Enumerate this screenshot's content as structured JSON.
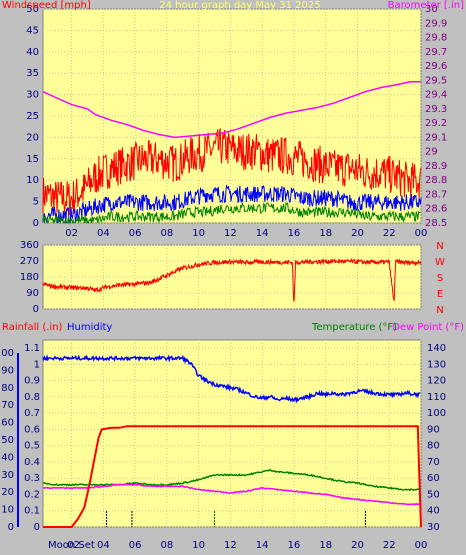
{
  "page": {
    "background": "#c0c0c0",
    "plot_bg": "#ffff99"
  },
  "chart_data": [
    {
      "type": "line",
      "title": "24 hour graph day   May 31 2025",
      "ylabel_left": "Windspeed [mph]",
      "ylabel_right": "Barometer [.in]",
      "xticks": [
        "02",
        "04",
        "06",
        "08",
        "10",
        "12",
        "14",
        "16",
        "18",
        "20",
        "22",
        "00"
      ],
      "yticks_left": [
        "0",
        "5",
        "10",
        "15",
        "20",
        "25",
        "30",
        "35",
        "40",
        "45",
        "50"
      ],
      "yticks_right": [
        "28.5",
        "28.6",
        "28.7",
        "28.8",
        "28.9",
        "29",
        "29.1",
        "29.2",
        "29.3",
        "29.4",
        "29.5",
        "29.6",
        "29.7",
        "29.8",
        "29.9",
        "30"
      ],
      "ylim_left": [
        0,
        50
      ],
      "ylim_right": [
        28.5,
        30
      ],
      "xlim": [
        0.2,
        24.0
      ],
      "colors": {
        "gust": "#ff0000",
        "average": "#0000ff",
        "minimum": "#008000",
        "barometer": "#ff00ff",
        "ylabel_left": "#ff0000",
        "ylabel_right": "#ff00ff",
        "title": "#ffff66",
        "tick": "#000080"
      },
      "series": [
        {
          "key": "gust",
          "points": [
            [
              0.2,
              5
            ],
            [
              1,
              4
            ],
            [
              2,
              4
            ],
            [
              2.8,
              6
            ],
            [
              3.5,
              9
            ],
            [
              4.5,
              11
            ],
            [
              5.5,
              12
            ],
            [
              6.5,
              13
            ],
            [
              7.5,
              13
            ],
            [
              8.5,
              12
            ],
            [
              9.5,
              14
            ],
            [
              10.5,
              15
            ],
            [
              11.5,
              16
            ],
            [
              12.5,
              15
            ],
            [
              13.5,
              15
            ],
            [
              14.5,
              14
            ],
            [
              15.5,
              14
            ],
            [
              16.5,
              13
            ],
            [
              17.5,
              12
            ],
            [
              18.5,
              11
            ],
            [
              19.5,
              11
            ],
            [
              20.5,
              10
            ],
            [
              21.5,
              10
            ],
            [
              22.5,
              9
            ],
            [
              23.2,
              8
            ],
            [
              24,
              8
            ]
          ]
        },
        {
          "key": "average",
          "points": [
            [
              0.2,
              1
            ],
            [
              1,
              1
            ],
            [
              2,
              1
            ],
            [
              2.8,
              2
            ],
            [
              3.5,
              3
            ],
            [
              4.5,
              4
            ],
            [
              5.5,
              4
            ],
            [
              6.5,
              4
            ],
            [
              7.5,
              4
            ],
            [
              8.5,
              4
            ],
            [
              9.5,
              5
            ],
            [
              10.5,
              6
            ],
            [
              11.5,
              6
            ],
            [
              12.5,
              6
            ],
            [
              13.5,
              6
            ],
            [
              14.5,
              6
            ],
            [
              15.5,
              6
            ],
            [
              16.5,
              5
            ],
            [
              17.5,
              5
            ],
            [
              18.5,
              5
            ],
            [
              19.5,
              4
            ],
            [
              20.5,
              4
            ],
            [
              21.5,
              4
            ],
            [
              22.5,
              4
            ],
            [
              23.2,
              4
            ],
            [
              24,
              4
            ]
          ]
        },
        {
          "key": "minimum",
          "points": [
            [
              0.2,
              0
            ],
            [
              1,
              0
            ],
            [
              2,
              0
            ],
            [
              2.8,
              0
            ],
            [
              3.5,
              0
            ],
            [
              4.5,
              1
            ],
            [
              5.5,
              1
            ],
            [
              6.5,
              1
            ],
            [
              7.5,
              1
            ],
            [
              8.5,
              1
            ],
            [
              9.5,
              2
            ],
            [
              10.5,
              2
            ],
            [
              11.5,
              3
            ],
            [
              12.5,
              3
            ],
            [
              13.5,
              3
            ],
            [
              14.5,
              3
            ],
            [
              15.5,
              3
            ],
            [
              16.5,
              2
            ],
            [
              17.5,
              2
            ],
            [
              18.5,
              2
            ],
            [
              19.5,
              2
            ],
            [
              20.5,
              1
            ],
            [
              21.5,
              1
            ],
            [
              22.5,
              1
            ],
            [
              23.2,
              1
            ],
            [
              24,
              1
            ]
          ]
        },
        {
          "key": "barometer",
          "points": [
            [
              0.2,
              29.42
            ],
            [
              1,
              29.38
            ],
            [
              2,
              29.33
            ],
            [
              3,
              29.3
            ],
            [
              3.5,
              29.26
            ],
            [
              4.5,
              29.22
            ],
            [
              5.5,
              29.19
            ],
            [
              6.5,
              29.15
            ],
            [
              7.5,
              29.12
            ],
            [
              8.5,
              29.1
            ],
            [
              9.5,
              29.11
            ],
            [
              10.5,
              29.12
            ],
            [
              11.5,
              29.13
            ],
            [
              12.5,
              29.16
            ],
            [
              13.5,
              29.2
            ],
            [
              14.5,
              29.24
            ],
            [
              15.5,
              29.27
            ],
            [
              16.5,
              29.29
            ],
            [
              17.5,
              29.31
            ],
            [
              18.5,
              29.34
            ],
            [
              19.5,
              29.38
            ],
            [
              20.5,
              29.42
            ],
            [
              21.5,
              29.45
            ],
            [
              22.5,
              29.47
            ],
            [
              23.3,
              29.49
            ],
            [
              24,
              29.49
            ]
          ]
        }
      ]
    },
    {
      "type": "line",
      "yticks_left": [
        "0",
        "90",
        "180",
        "270",
        "360"
      ],
      "ylim": [
        0,
        360
      ],
      "xlim": [
        0.2,
        24.0
      ],
      "compass_labels": [
        "N",
        "W",
        "S",
        "E",
        "N"
      ],
      "colors": {
        "direction": "#ff0000",
        "compass": "#ff0000"
      },
      "series": [
        {
          "key": "direction",
          "points": [
            [
              0.2,
              140
            ],
            [
              1,
              125
            ],
            [
              2,
              120
            ],
            [
              3,
              118
            ],
            [
              3.5,
              105
            ],
            [
              4.2,
              125
            ],
            [
              5,
              135
            ],
            [
              6,
              140
            ],
            [
              7,
              150
            ],
            [
              8,
              190
            ],
            [
              9,
              230
            ],
            [
              10,
              250
            ],
            [
              11,
              262
            ],
            [
              12,
              265
            ],
            [
              13,
              262
            ],
            [
              14,
              265
            ],
            [
              15,
              263
            ],
            [
              15.9,
              262
            ],
            [
              16,
              10
            ],
            [
              16.1,
              262
            ],
            [
              17,
              265
            ],
            [
              18,
              268
            ],
            [
              19,
              268
            ],
            [
              20,
              266
            ],
            [
              21,
              262
            ],
            [
              22,
              265
            ],
            [
              22.3,
              30
            ],
            [
              22.4,
              265
            ],
            [
              23,
              262
            ],
            [
              24,
              262
            ]
          ]
        }
      ]
    },
    {
      "type": "line",
      "ylabel_left_1": "Rainfall (.in)",
      "ylabel_left_2": "Humidity",
      "ylabel_right_1": "Temperature (°F)",
      "ylabel_right_2": "Dew Point (°F)",
      "yticks_humidity": [
        "0",
        "10",
        "20",
        "30",
        "40",
        "50",
        "60",
        "70",
        "80",
        "90",
        "100"
      ],
      "yticks_rain": [
        "0",
        "0.1",
        "0.2",
        "0.3",
        "0.4",
        "0.5",
        "0.6",
        "0.7",
        "0.8",
        "0.9",
        "1",
        "1.1"
      ],
      "yticks_temp": [
        "30",
        "40",
        "50",
        "60",
        "70",
        "80",
        "90",
        "100",
        "110",
        "120",
        "130",
        "140"
      ],
      "ylim_humidity": [
        0,
        100
      ],
      "ylim_rain": [
        0,
        1.15
      ],
      "ylim_temp": [
        30,
        145
      ],
      "xlim": [
        0.2,
        24.0
      ],
      "xticks": [
        "02",
        "04",
        "06",
        "08",
        "10",
        "12",
        "14",
        "16",
        "18",
        "20",
        "22",
        "00"
      ],
      "moon_label": "Moon Set",
      "moon_time": "02",
      "colors": {
        "rain": "#ff0000",
        "humidity": "#0000ff",
        "temperature": "#008000",
        "dewpoint": "#ff00ff",
        "rain_label": "#ff0000",
        "humidity_label": "#0000ff",
        "temp_label": "#008000",
        "dew_label": "#ff00ff"
      },
      "series": [
        {
          "key": "humidity",
          "unit_axis": "humidity",
          "points": [
            [
              0.2,
              97
            ],
            [
              1,
              97
            ],
            [
              2,
              97
            ],
            [
              4,
              97
            ],
            [
              6,
              97
            ],
            [
              7.5,
              97
            ],
            [
              8.5,
              97
            ],
            [
              9,
              97
            ],
            [
              9.5,
              94
            ],
            [
              10,
              87
            ],
            [
              10.5,
              84
            ],
            [
              11,
              82
            ],
            [
              12,
              80
            ],
            [
              12.5,
              79
            ],
            [
              13,
              77
            ],
            [
              13.5,
              75
            ],
            [
              14,
              74
            ],
            [
              14.5,
              75
            ],
            [
              15,
              73
            ],
            [
              15.5,
              74
            ],
            [
              16,
              73
            ],
            [
              16.5,
              74
            ],
            [
              17,
              75
            ],
            [
              17.5,
              77
            ],
            [
              18,
              76
            ],
            [
              18.5,
              77
            ],
            [
              19,
              76
            ],
            [
              20,
              78
            ],
            [
              20.5,
              78
            ],
            [
              21,
              77
            ],
            [
              22,
              76
            ],
            [
              22.5,
              76
            ],
            [
              23,
              77
            ],
            [
              24,
              76
            ]
          ]
        },
        {
          "key": "rain",
          "unit_axis": "rain",
          "points": [
            [
              0.2,
              0
            ],
            [
              1,
              0
            ],
            [
              2,
              0
            ],
            [
              2.4,
              0.05
            ],
            [
              2.8,
              0.12
            ],
            [
              3.1,
              0.25
            ],
            [
              3.4,
              0.4
            ],
            [
              3.7,
              0.55
            ],
            [
              3.9,
              0.6
            ],
            [
              4.5,
              0.61
            ],
            [
              5,
              0.61
            ],
            [
              5.5,
              0.62
            ],
            [
              8,
              0.62
            ],
            [
              12,
              0.62
            ],
            [
              16,
              0.62
            ],
            [
              20,
              0.62
            ],
            [
              23.8,
              0.62
            ],
            [
              23.9,
              0.3
            ],
            [
              24,
              0
            ]
          ]
        },
        {
          "key": "temperature",
          "unit_axis": "temp",
          "points": [
            [
              0.2,
              57
            ],
            [
              1,
              56
            ],
            [
              2,
              56
            ],
            [
              3,
              56
            ],
            [
              4,
              56
            ],
            [
              5,
              56
            ],
            [
              6,
              57
            ],
            [
              7,
              56
            ],
            [
              8,
              56
            ],
            [
              9,
              57
            ],
            [
              10,
              59
            ],
            [
              11,
              62
            ],
            [
              12,
              62
            ],
            [
              13,
              62
            ],
            [
              14,
              64
            ],
            [
              14.5,
              65
            ],
            [
              15,
              64
            ],
            [
              16,
              63
            ],
            [
              17,
              62
            ],
            [
              18,
              60
            ],
            [
              19,
              58
            ],
            [
              20,
              57
            ],
            [
              21,
              55
            ],
            [
              22,
              54
            ],
            [
              23,
              53
            ],
            [
              24,
              53
            ]
          ]
        },
        {
          "key": "dewpoint",
          "unit_axis": "temp",
          "points": [
            [
              0.2,
              54
            ],
            [
              1,
              54
            ],
            [
              2,
              54
            ],
            [
              3,
              54
            ],
            [
              4,
              55
            ],
            [
              5,
              56
            ],
            [
              6,
              56
            ],
            [
              7,
              55
            ],
            [
              8,
              55
            ],
            [
              9,
              55
            ],
            [
              10,
              53
            ],
            [
              11,
              52
            ],
            [
              12,
              51
            ],
            [
              13,
              52
            ],
            [
              14,
              54
            ],
            [
              15,
              53
            ],
            [
              16,
              52
            ],
            [
              17,
              51
            ],
            [
              18,
              50
            ],
            [
              19,
              48
            ],
            [
              20,
              47
            ],
            [
              21,
              46
            ],
            [
              22,
              45
            ],
            [
              23,
              44
            ],
            [
              24,
              44
            ]
          ]
        }
      ],
      "markers": [
        [
          4.2,
          "#000000"
        ],
        [
          5.8,
          "#000000"
        ],
        [
          11.0,
          "#008000"
        ],
        [
          20.5,
          "#000000"
        ]
      ]
    }
  ]
}
